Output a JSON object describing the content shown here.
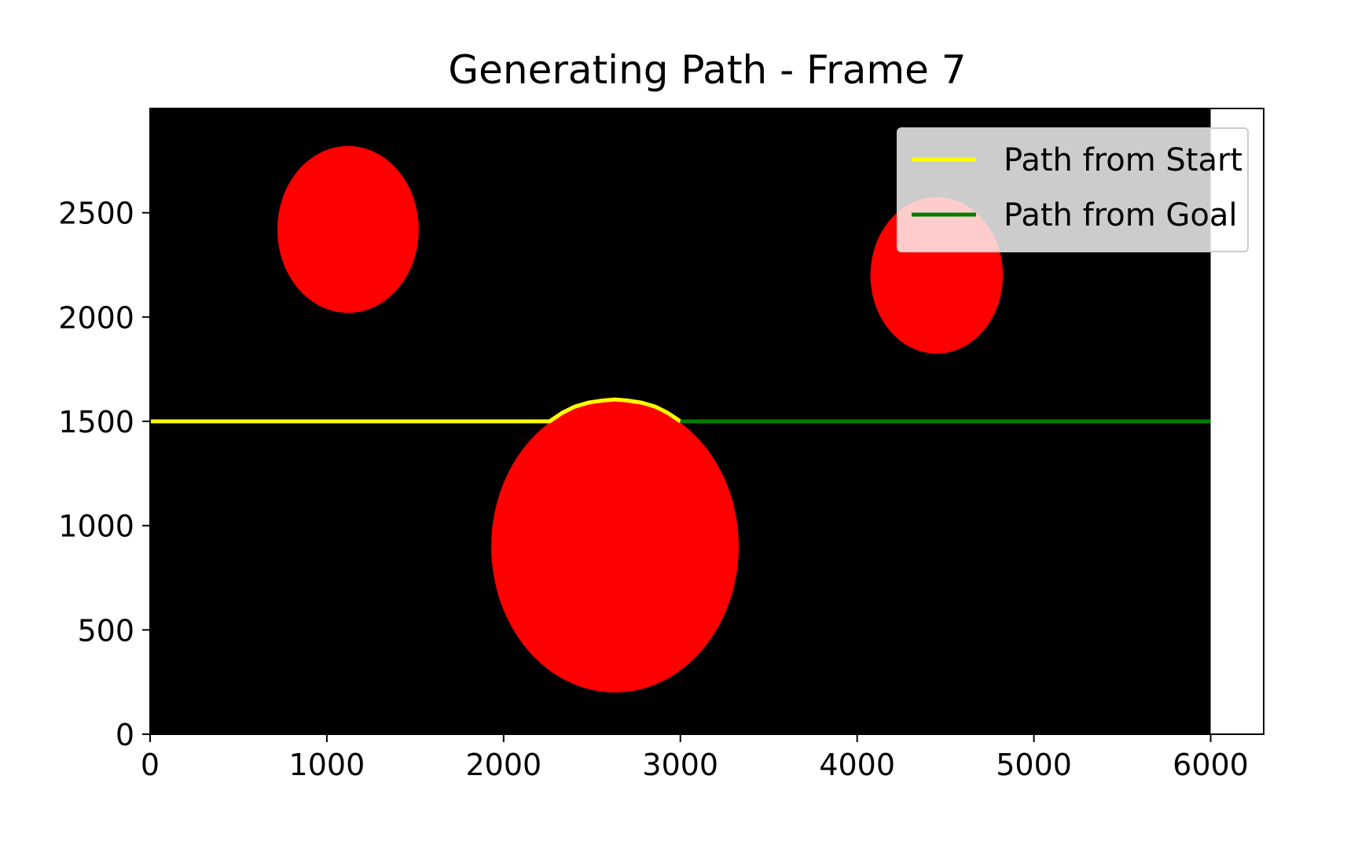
{
  "chart_data": {
    "type": "line",
    "title": "Generating Path - Frame 7",
    "xlabel": "",
    "ylabel": "",
    "xlim": [
      0,
      6300
    ],
    "ylim": [
      0,
      3000
    ],
    "xticks": [
      0,
      1000,
      2000,
      3000,
      4000,
      5000,
      6000
    ],
    "yticks": [
      0,
      500,
      1000,
      1500,
      2000,
      2500
    ],
    "grid": false,
    "legend_position": "top-right",
    "map": {
      "background_color": "#000000",
      "x_range": [
        0,
        6000
      ],
      "y_range": [
        0,
        3000
      ]
    },
    "obstacles": [
      {
        "cx": 1120,
        "cy": 2420,
        "rx": 400,
        "ry": 400,
        "color": "#ff0000"
      },
      {
        "cx": 4450,
        "cy": 2200,
        "rx": 375,
        "ry": 375,
        "color": "#ff0000"
      },
      {
        "cx": 2630,
        "cy": 900,
        "rx": 700,
        "ry": 700,
        "color": "#ff0000"
      }
    ],
    "series": [
      {
        "name": "Path from Start",
        "color": "#ffff00",
        "points": [
          [
            0,
            1500
          ],
          [
            2260,
            1500
          ],
          [
            2330,
            1540
          ],
          [
            2400,
            1570
          ],
          [
            2480,
            1590
          ],
          [
            2560,
            1600
          ],
          [
            2630,
            1605
          ],
          [
            2700,
            1600
          ],
          [
            2780,
            1590
          ],
          [
            2860,
            1570
          ],
          [
            2930,
            1540
          ],
          [
            3000,
            1500
          ]
        ]
      },
      {
        "name": "Path from Goal",
        "color": "#007f00",
        "points": [
          [
            3000,
            1500
          ],
          [
            6000,
            1500
          ]
        ]
      }
    ]
  }
}
